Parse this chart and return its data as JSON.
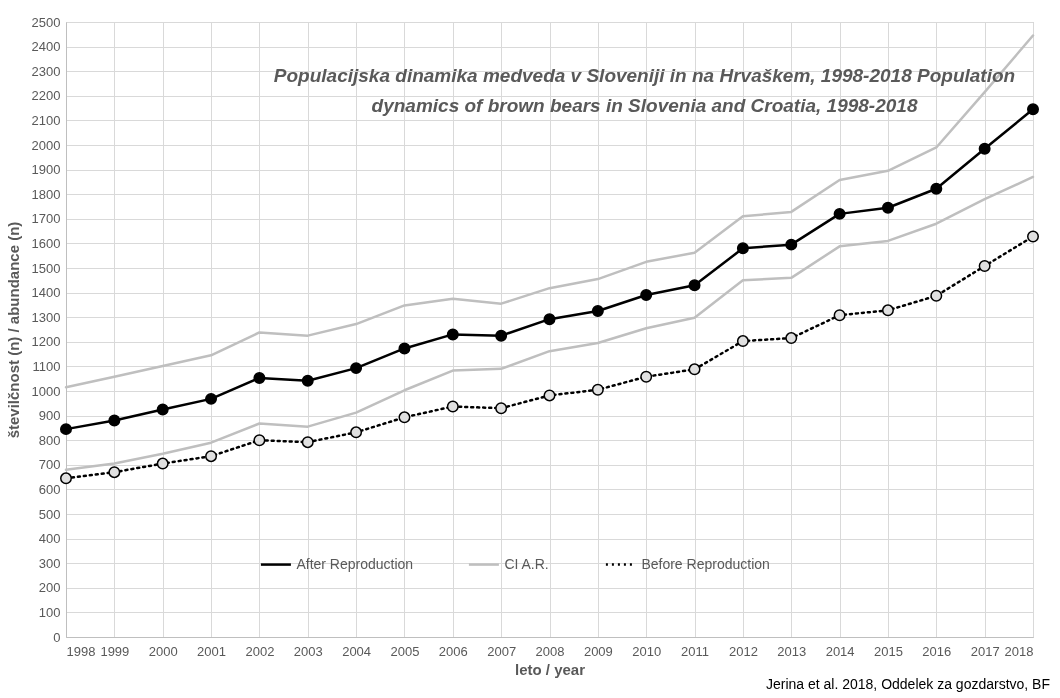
{
  "chart_data": {
    "type": "line",
    "title": "Populacijska dinamika medveda v Sloveniji in na Hrvaškem, 1998-2018 Population dynamics of brown bears in Slovenia and Croatia, 1998-2018",
    "xlabel": "leto / year",
    "ylabel": "številčnost (n) / abundance (n)",
    "annotations": [
      "Jerina et al. 2018, Oddelek za gozdarstvo, BF"
    ],
    "categories": [
      "1998",
      "1999",
      "2000",
      "2001",
      "2002",
      "2003",
      "2004",
      "2005",
      "2006",
      "2007",
      "2008",
      "2009",
      "2010",
      "2011",
      "2012",
      "2013",
      "2014",
      "2015",
      "2016",
      "2017",
      "2018"
    ],
    "series": [
      {
        "name": "After Reproduction",
        "color": "#000000",
        "marker": "circle",
        "line_style": "solid",
        "values": [
          845,
          880,
          925,
          968,
          1053,
          1042,
          1093,
          1173,
          1230,
          1225,
          1292,
          1325,
          1390,
          1430,
          1580,
          1595,
          1720,
          1745,
          1822,
          1985,
          2145
        ]
      },
      {
        "name": "CI A.R.",
        "color": "#bfbfbf",
        "marker": "none",
        "line_style": "solid",
        "values": [
          1015,
          1058,
          1102,
          1145,
          1238,
          1225,
          1272,
          1348,
          1375,
          1355,
          1418,
          1455,
          1525,
          1562,
          1710,
          1728,
          1858,
          1895,
          1990,
          2215,
          2445
        ]
      },
      {
        "color": "#bfbfbf",
        "marker": "none",
        "line_style": "solid",
        "values": [
          680,
          705,
          745,
          790,
          868,
          855,
          912,
          1003,
          1083,
          1090,
          1162,
          1195,
          1255,
          1298,
          1450,
          1460,
          1588,
          1610,
          1680,
          1780,
          1870
        ]
      },
      {
        "name": "Before Reproduction",
        "color": "#000000",
        "marker": "circle",
        "line_style": "dotted",
        "values": [
          645,
          670,
          705,
          735,
          800,
          792,
          832,
          893,
          937,
          930,
          982,
          1005,
          1058,
          1088,
          1203,
          1215,
          1308,
          1328,
          1387,
          1508,
          1628
        ]
      }
    ],
    "ylim": [
      0,
      2500
    ],
    "yticks": [
      0,
      100,
      200,
      300,
      400,
      500,
      600,
      700,
      800,
      900,
      1000,
      1100,
      1200,
      1300,
      1400,
      1500,
      1600,
      1700,
      1800,
      1900,
      2000,
      2100,
      2200,
      2300,
      2400,
      2500
    ],
    "grid": true,
    "legend": "bottom"
  }
}
